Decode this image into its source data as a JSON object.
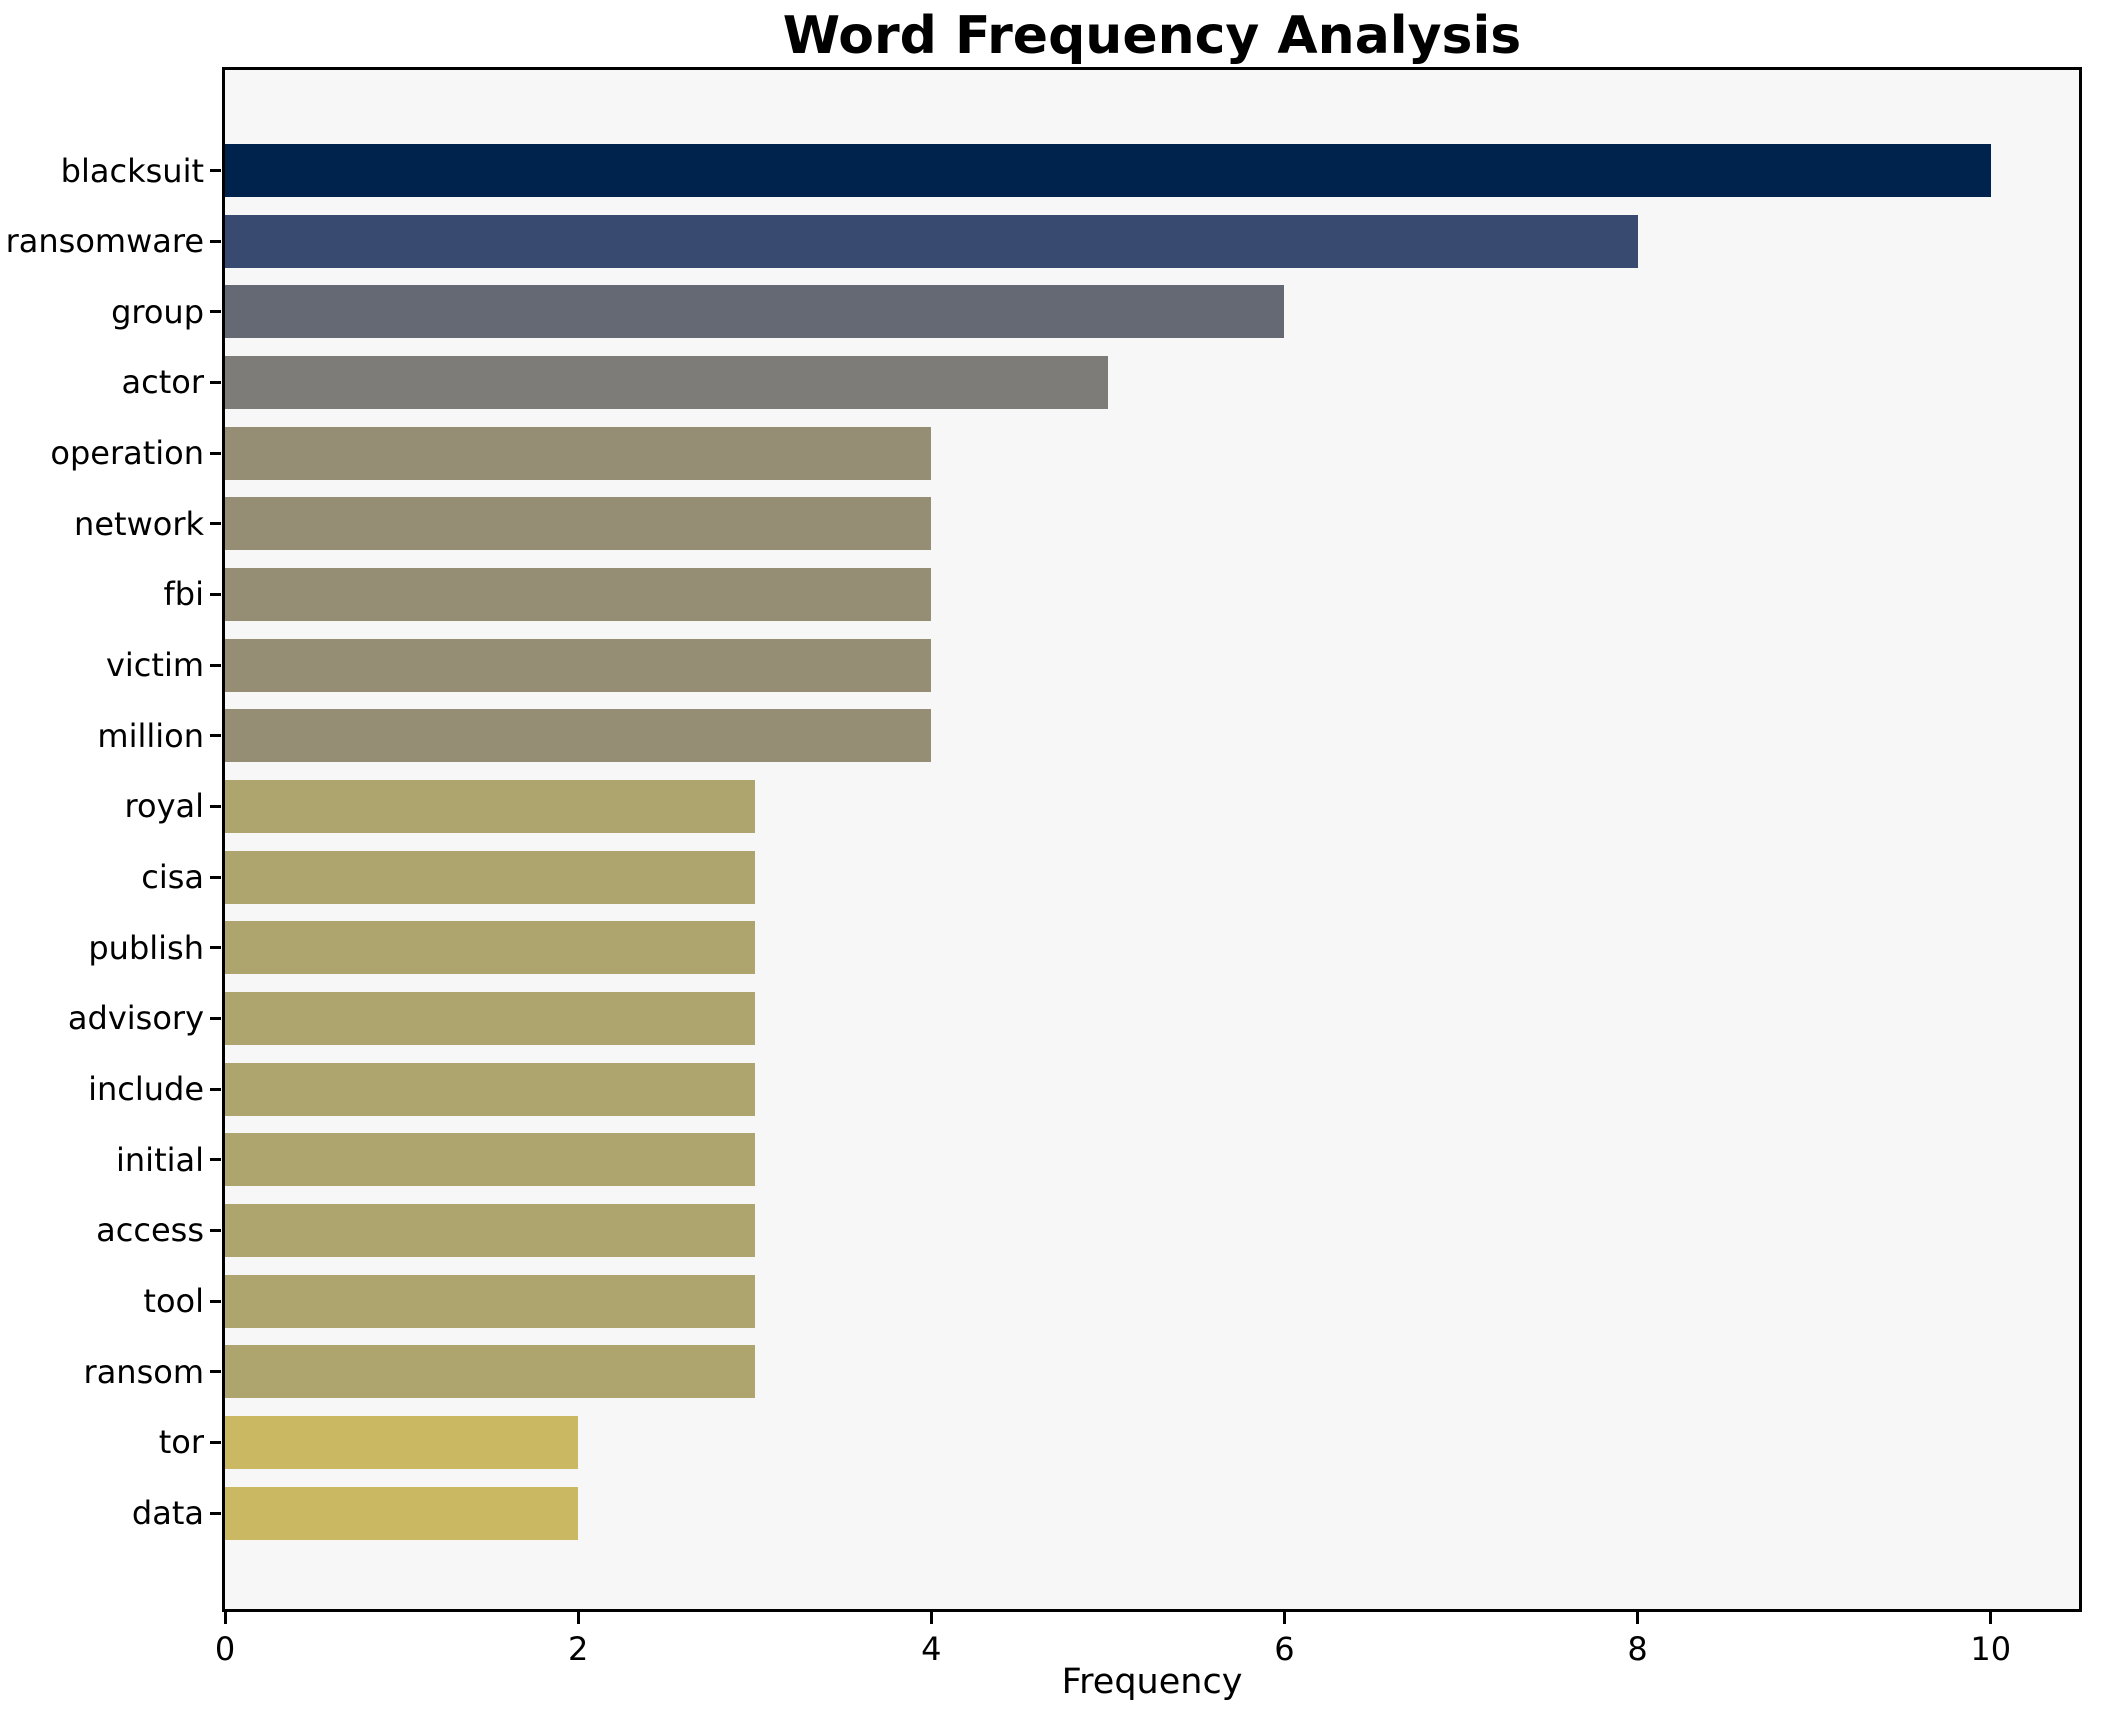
{
  "chart_data": {
    "type": "bar",
    "orientation": "horizontal",
    "title": "Word Frequency Analysis",
    "xlabel": "Frequency",
    "ylabel": "",
    "categories": [
      "blacksuit",
      "ransomware",
      "group",
      "actor",
      "operation",
      "network",
      "fbi",
      "victim",
      "million",
      "royal",
      "cisa",
      "publish",
      "advisory",
      "include",
      "initial",
      "access",
      "tool",
      "ransom",
      "tor",
      "data"
    ],
    "values": [
      10,
      8,
      6,
      5,
      4,
      4,
      4,
      4,
      4,
      3,
      3,
      3,
      3,
      3,
      3,
      3,
      3,
      3,
      2,
      2
    ],
    "bar_colors": [
      "#00234d",
      "#384a6f",
      "#646973",
      "#7d7c78",
      "#958e74",
      "#958e74",
      "#958e74",
      "#958e74",
      "#958e74",
      "#ada46e",
      "#ada46e",
      "#ada46e",
      "#ada46e",
      "#ada46e",
      "#ada46e",
      "#ada46e",
      "#ada46e",
      "#ada46e",
      "#cab862",
      "#cab862"
    ],
    "x_ticks": [
      0,
      2,
      4,
      6,
      8,
      10
    ],
    "xlim": [
      0,
      10.5
    ],
    "grid": false,
    "legend": null,
    "plot_background": "#f7f7f7",
    "figure_background": "#ffffff",
    "spine_color": "#000000",
    "text_color": "#000000"
  }
}
